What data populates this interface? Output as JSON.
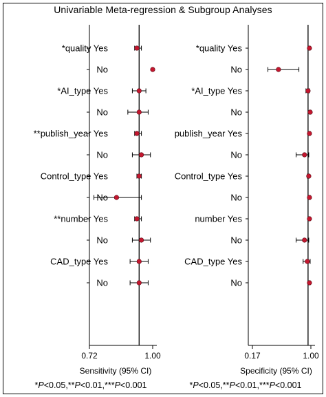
{
  "title": "Univariable Meta-regression & Subgroup Analyses",
  "colors": {
    "marker": "#c4172f",
    "ink": "#000000"
  },
  "chart_data": [
    {
      "type": "forest",
      "xlabel": "Sensitivity (95% CI)",
      "xlim": [
        0.72,
        1.0
      ],
      "tick_labels": [
        "0.72",
        "1.00"
      ],
      "reference_line": 0.94,
      "footnote": "*P<0.05,**P<0.01,***P<0.001",
      "rows": [
        {
          "label": "*quality Yes",
          "est": 0.93,
          "lo": 0.92,
          "hi": 0.95
        },
        {
          "label": "No",
          "est": 1.0,
          "lo": 1.0,
          "hi": 1.0
        },
        {
          "label": "*AI_type Yes",
          "est": 0.94,
          "lo": 0.91,
          "hi": 0.97
        },
        {
          "label": "No",
          "est": 0.94,
          "lo": 0.89,
          "hi": 0.98
        },
        {
          "label": "**publish_year Yes",
          "est": 0.93,
          "lo": 0.92,
          "hi": 0.95
        },
        {
          "label": "No",
          "est": 0.95,
          "lo": 0.91,
          "hi": 0.99
        },
        {
          "label": "Control_type Yes",
          "est": 0.94,
          "lo": 0.93,
          "hi": 0.95
        },
        {
          "label": "No",
          "est": 0.84,
          "lo": 0.74,
          "hi": 0.95
        },
        {
          "label": "**number Yes",
          "est": 0.93,
          "lo": 0.92,
          "hi": 0.95
        },
        {
          "label": "No",
          "est": 0.95,
          "lo": 0.91,
          "hi": 0.99
        },
        {
          "label": "CAD_type Yes",
          "est": 0.94,
          "lo": 0.9,
          "hi": 0.98
        },
        {
          "label": "No",
          "est": 0.94,
          "lo": 0.9,
          "hi": 0.98
        }
      ]
    },
    {
      "type": "forest",
      "xlabel": "Specificity (95% CI)",
      "xlim": [
        0.17,
        1.0
      ],
      "tick_labels": [
        "0.17",
        "1.00"
      ],
      "reference_line": 0.96,
      "footnote": "*P<0.05,**P<0.01,***P<0.001",
      "rows": [
        {
          "label": "*quality Yes",
          "est": 0.98,
          "lo": 0.96,
          "hi": 0.99
        },
        {
          "label": "No",
          "est": 0.54,
          "lo": 0.39,
          "hi": 0.83
        },
        {
          "label": "*AI_type Yes",
          "est": 0.96,
          "lo": 0.93,
          "hi": 0.98
        },
        {
          "label": "No",
          "est": 0.99,
          "lo": 0.98,
          "hi": 1.0
        },
        {
          "label": "publish_year Yes",
          "est": 0.98,
          "lo": 0.96,
          "hi": 0.99
        },
        {
          "label": "No",
          "est": 0.91,
          "lo": 0.79,
          "hi": 0.97
        },
        {
          "label": "Control_type Yes",
          "est": 0.97,
          "lo": 0.95,
          "hi": 0.98
        },
        {
          "label": "No",
          "est": 0.98,
          "lo": 0.96,
          "hi": 0.99
        },
        {
          "label": "number Yes",
          "est": 0.98,
          "lo": 0.96,
          "hi": 0.99
        },
        {
          "label": "No",
          "est": 0.91,
          "lo": 0.79,
          "hi": 0.97
        },
        {
          "label": "CAD_type Yes",
          "est": 0.95,
          "lo": 0.89,
          "hi": 0.99
        },
        {
          "label": "No",
          "est": 0.98,
          "lo": 0.96,
          "hi": 0.99
        }
      ]
    }
  ]
}
